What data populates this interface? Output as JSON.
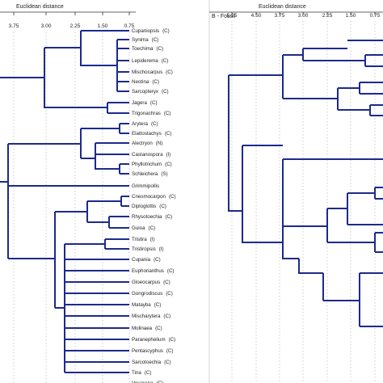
{
  "panel_a": {
    "axis_title": "Euclidean distance",
    "ticks": [
      "3.75",
      "3.00",
      "2.25",
      "1.50",
      "0.75"
    ]
  },
  "panel_b": {
    "title": "B - Fossil",
    "axis_title": "Euclidean distance",
    "ticks": [
      "5.25",
      "4.50",
      "3.75",
      "3.00",
      "2.25",
      "1.50",
      "0.75"
    ]
  },
  "leaves": [
    {
      "name": "Cupaniopsis",
      "tag": "(C)"
    },
    {
      "name": "Synima",
      "tag": "(C)"
    },
    {
      "name": "Toechima",
      "tag": "(C)"
    },
    {
      "name": "Lepiderema",
      "tag": "(C)"
    },
    {
      "name": "Mischocarpus",
      "tag": "(C)"
    },
    {
      "name": "Neotina",
      "tag": "(C)"
    },
    {
      "name": "Sarcopteryx",
      "tag": "(C)"
    },
    {
      "name": "Jagera",
      "tag": "(C)"
    },
    {
      "name": "Trigonachras",
      "tag": "(C)"
    },
    {
      "name": "Arytera",
      "tag": "(C)"
    },
    {
      "name": "Elattostachys",
      "tag": "(C)"
    },
    {
      "name": "Alectryon",
      "tag": "(N)"
    },
    {
      "name": "Castanospora",
      "tag": "(I)"
    },
    {
      "name": "Phyllotrichum",
      "tag": "(C)"
    },
    {
      "name": "Schleichera",
      "tag": "(S)"
    },
    {
      "name": "Grimmipollis",
      "tag": ""
    },
    {
      "name": "Cnesmocarpon",
      "tag": "(C)"
    },
    {
      "name": "Diploglottis",
      "tag": "(C)"
    },
    {
      "name": "Rhysotoechia",
      "tag": "(C)"
    },
    {
      "name": "Guioa",
      "tag": "(C)"
    },
    {
      "name": "Tristira",
      "tag": "(I)"
    },
    {
      "name": "Tristiropsis",
      "tag": "(I)"
    },
    {
      "name": "Cupania",
      "tag": "(C)"
    },
    {
      "name": "Euphorianthus",
      "tag": "(C)"
    },
    {
      "name": "Gloeocarpus",
      "tag": "(C)"
    },
    {
      "name": "Gongrodiscus",
      "tag": "(C)"
    },
    {
      "name": "Matayba",
      "tag": "(C)"
    },
    {
      "name": "Mischarytera",
      "tag": "(C)"
    },
    {
      "name": "Molinaea",
      "tag": "(C)"
    },
    {
      "name": "Paranephelium",
      "tag": "(C)"
    },
    {
      "name": "Pentascyphus",
      "tag": "(C)"
    },
    {
      "name": "Sarcotoechia",
      "tag": "(C)"
    },
    {
      "name": "Tina",
      "tag": "(C)"
    },
    {
      "name": "Vouarana",
      "tag": "(C)"
    }
  ]
}
